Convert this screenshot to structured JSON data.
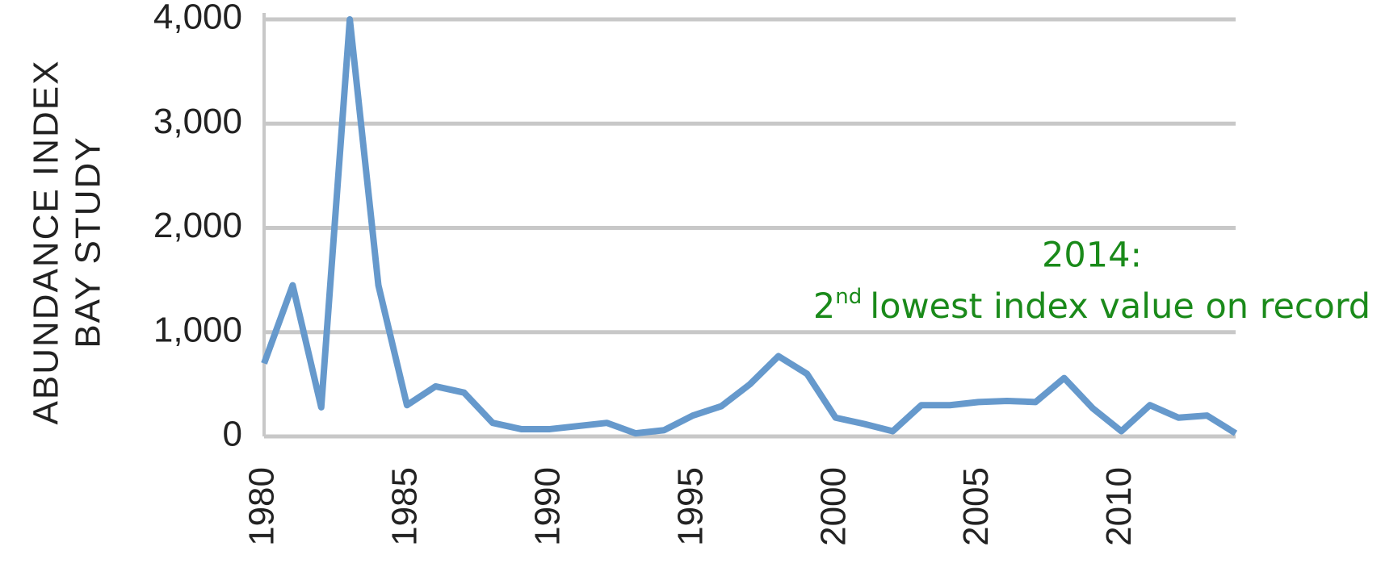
{
  "chart_data": {
    "type": "line",
    "ylabel": [
      "ABUNDANCE INDEX",
      "BAY STUDY"
    ],
    "x": [
      1980,
      1981,
      1982,
      1983,
      1984,
      1985,
      1986,
      1987,
      1988,
      1989,
      1990,
      1991,
      1992,
      1993,
      1994,
      1995,
      1996,
      1997,
      1998,
      1999,
      2000,
      2001,
      2002,
      2003,
      2004,
      2005,
      2006,
      2007,
      2008,
      2009,
      2010,
      2011,
      2012,
      2013,
      2014
    ],
    "series": [
      {
        "color": "#6699cc",
        "values": [
          700,
          1450,
          280,
          4000,
          1450,
          300,
          480,
          420,
          130,
          70,
          70,
          100,
          130,
          30,
          60,
          200,
          290,
          500,
          770,
          600,
          180,
          120,
          50,
          300,
          300,
          330,
          340,
          330,
          560,
          270,
          50,
          300,
          180,
          200,
          30
        ]
      }
    ],
    "xlim": [
      1980,
      2014
    ],
    "xticks": [
      1980,
      1985,
      1990,
      1995,
      2000,
      2005,
      2010
    ],
    "ylim": [
      0,
      4000
    ],
    "yticks": [
      0,
      {
        "value": 1000,
        "label": "1,000"
      },
      {
        "value": 2000,
        "label": "2,000"
      },
      {
        "value": 3000,
        "label": "3,000"
      },
      {
        "value": 4000,
        "label": "4,000"
      }
    ],
    "grid": true,
    "annotation": {
      "title": "2014:",
      "number": "2",
      "suffix": "nd",
      "text": "lowest index value on record"
    }
  }
}
